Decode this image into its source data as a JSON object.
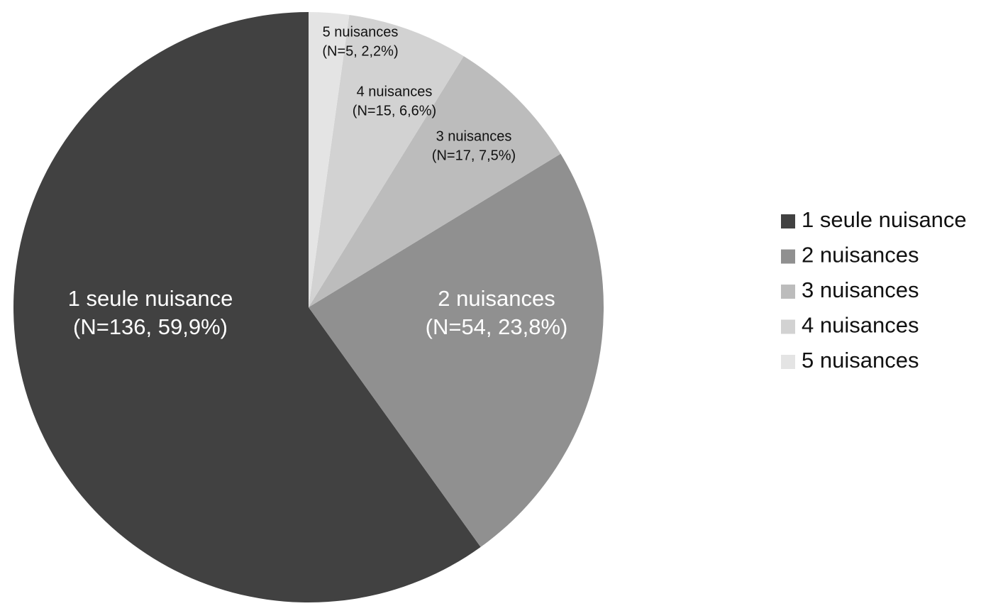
{
  "chart_data": {
    "type": "pie",
    "title": "",
    "start_angle": "12 o'clock, clockwise",
    "legend_placement": "right",
    "slices": [
      {
        "name": "1 seule nuisance",
        "n": 136,
        "percent": 59.9,
        "label_line1": "1 seule nuisance",
        "label_line2": "(N=136, 59,9%)",
        "color": "#414141",
        "label_color": "#ffffff"
      },
      {
        "name": "2 nuisances",
        "n": 54,
        "percent": 23.8,
        "label_line1": "2 nuisances",
        "label_line2": "(N=54, 23,8%)",
        "color": "#909090",
        "label_color": "#ffffff"
      },
      {
        "name": "3 nuisances",
        "n": 17,
        "percent": 7.5,
        "label_line1": "3 nuisances",
        "label_line2": "(N=17, 7,5%)",
        "color": "#bcbcbc",
        "label_color": "#111111"
      },
      {
        "name": "4 nuisances",
        "n": 15,
        "percent": 6.6,
        "label_line1": "4 nuisances",
        "label_line2": "(N=15, 6,6%)",
        "color": "#d2d2d2",
        "label_color": "#111111"
      },
      {
        "name": "5 nuisances",
        "n": 5,
        "percent": 2.2,
        "label_line1": "5 nuisances",
        "label_line2": "(N=5, 2,2%)",
        "color": "#e4e4e4",
        "label_color": "#111111"
      }
    ]
  }
}
